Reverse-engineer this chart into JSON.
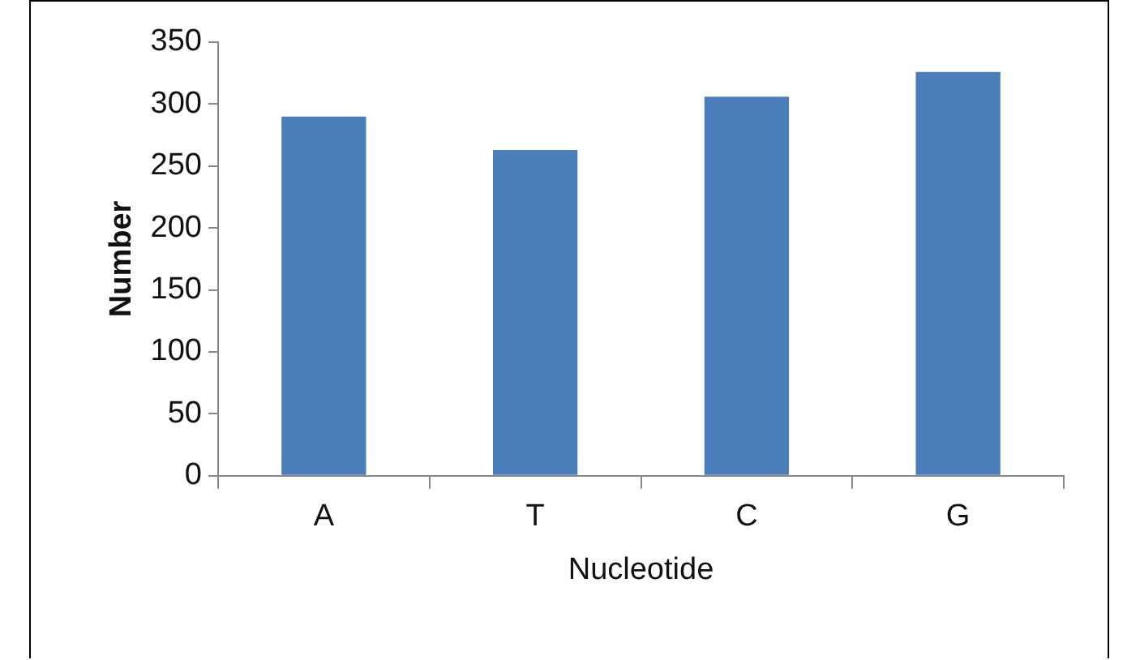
{
  "chart_data": {
    "type": "bar",
    "xlabel": "Nucleotide",
    "ylabel": "Number",
    "categories": [
      "A",
      "T",
      "C",
      "G"
    ],
    "values": [
      290,
      263,
      306,
      326
    ],
    "color": "#4a7ebb",
    "ylim": [
      0,
      350
    ],
    "yticks": [
      0,
      50,
      100,
      150,
      200,
      250,
      300,
      350
    ],
    "grid": false,
    "legend": false
  }
}
